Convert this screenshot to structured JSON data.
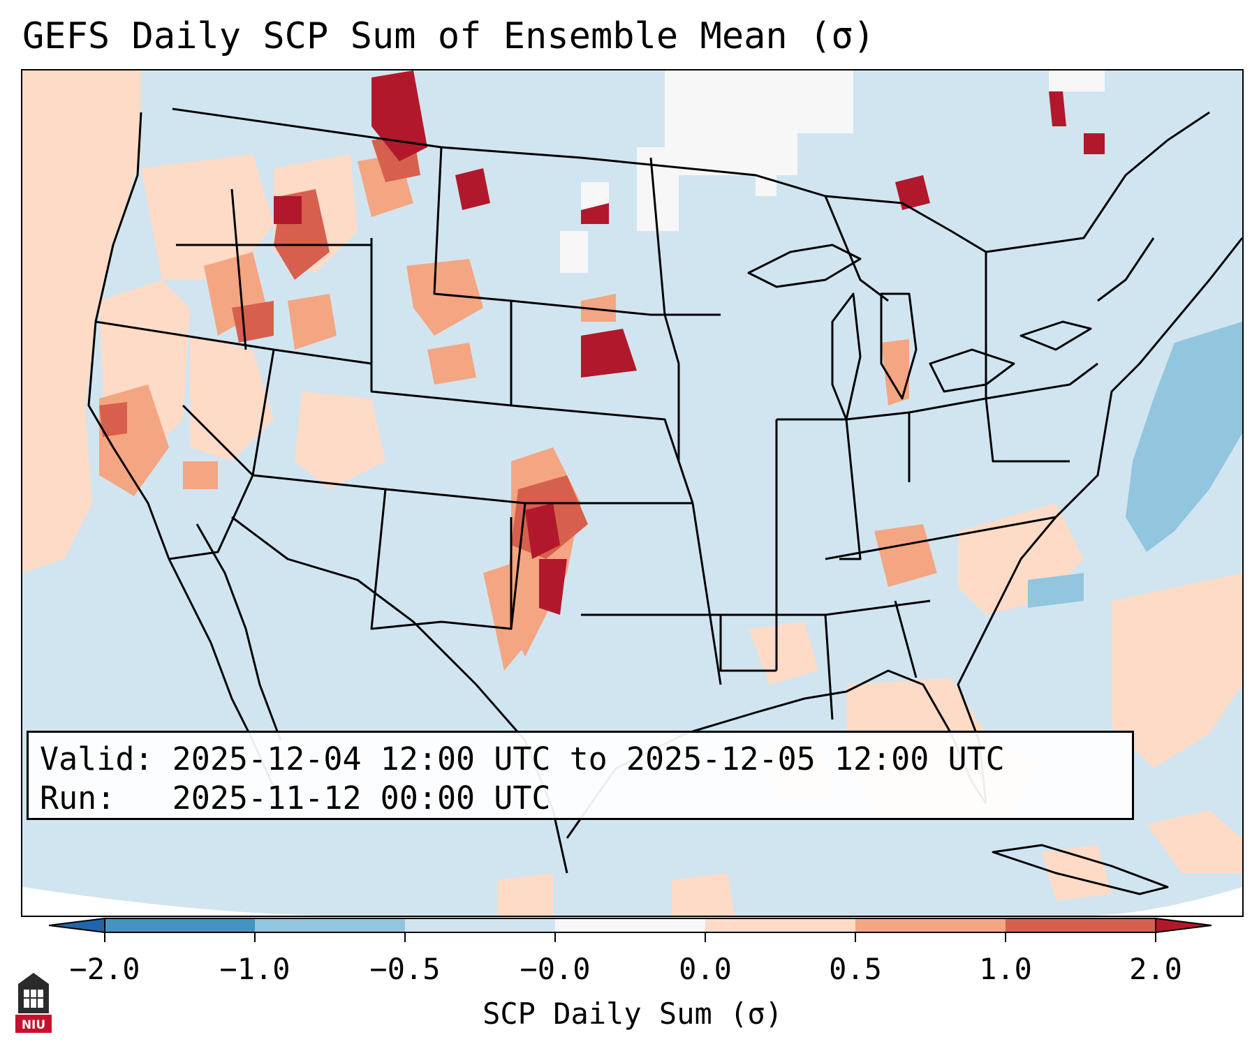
{
  "title": "GEFS Daily SCP Sum of Ensemble Mean (σ)",
  "info": {
    "valid_label": "Valid:",
    "valid_range": "2025-12-04 12:00 UTC to 2025-12-05 12:00 UTC",
    "run_label": "Run:",
    "run_time": "2025-11-12 00:00 UTC"
  },
  "colorbar": {
    "label": "SCP Daily Sum (σ)",
    "ticks": [
      "−2.0",
      "−1.0",
      "−0.5",
      "−0.0",
      "0.0",
      "0.5",
      "1.0",
      "2.0"
    ],
    "colors": [
      "#4393c3",
      "#92c5de",
      "#d1e5f0",
      "#f7f7f7",
      "#fddbc7",
      "#f4a582",
      "#d6604d",
      "#b2182b"
    ],
    "under_color": "#2166ac",
    "over_color": "#67001f"
  },
  "map": {
    "background_color": "#d1e5f0",
    "border_color": "#000000"
  },
  "logo": {
    "text": "NIU"
  }
}
